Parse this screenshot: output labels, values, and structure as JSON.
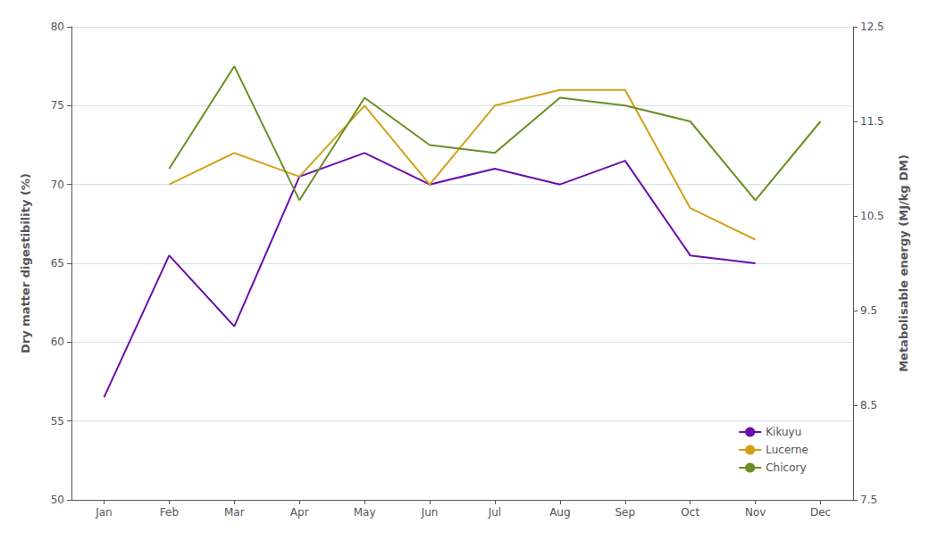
{
  "chart_data": {
    "type": "line",
    "categories": [
      "Jan",
      "Feb",
      "Mar",
      "Apr",
      "May",
      "Jun",
      "Jul",
      "Aug",
      "Sep",
      "Oct",
      "Nov",
      "Dec"
    ],
    "series": [
      {
        "name": "Kikuyu",
        "color": "#6a0dad",
        "values": [
          56.5,
          65.5,
          61.0,
          70.5,
          72.0,
          70.0,
          71.0,
          70.0,
          71.5,
          65.5,
          65.0,
          null
        ]
      },
      {
        "name": "Lucerne",
        "color": "#d4a017",
        "values": [
          null,
          70.0,
          72.0,
          70.5,
          75.0,
          70.0,
          75.0,
          76.0,
          76.0,
          68.5,
          66.5,
          null
        ]
      },
      {
        "name": "Chicory",
        "color": "#6b8e23",
        "values": [
          null,
          71.0,
          77.5,
          69.0,
          75.5,
          72.5,
          72.0,
          75.5,
          75.0,
          74.0,
          69.0,
          74.0
        ]
      }
    ],
    "ylabel": "Dry matter digestibility (%)",
    "y2label": "Metabolisable energy (MJ/kg DM)",
    "ylim": [
      50,
      80
    ],
    "yticks": [
      50,
      55,
      60,
      65,
      70,
      75,
      80
    ],
    "y2lim": [
      7.5,
      12.5
    ],
    "y2ticks": [
      7.5,
      8.5,
      9.5,
      10.5,
      11.5,
      12.5
    ],
    "grid": true,
    "legend": "lower right"
  }
}
